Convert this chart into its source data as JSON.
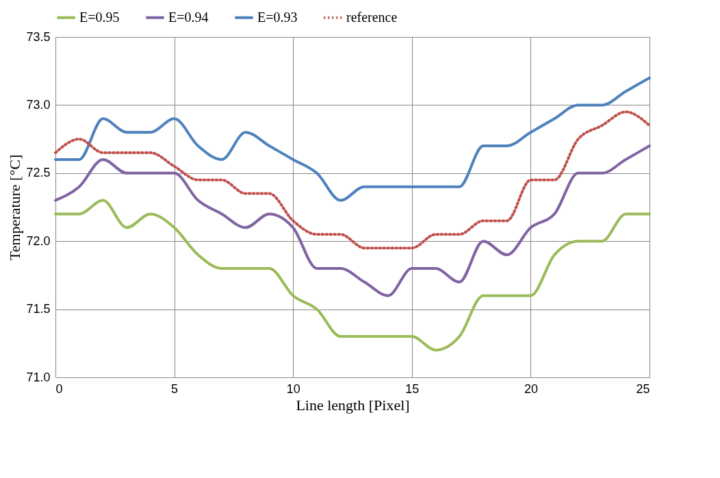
{
  "chart_data": {
    "type": "line",
    "xlabel": "Line length [Pixel]",
    "ylabel": "Temperature [°C]",
    "x": [
      0,
      1,
      2,
      3,
      4,
      5,
      6,
      7,
      8,
      9,
      10,
      11,
      12,
      13,
      14,
      15,
      16,
      17,
      18,
      19,
      20,
      21,
      22,
      23,
      24,
      25
    ],
    "series": [
      {
        "name": "E=0.95",
        "color": "#9bbb59",
        "line_style": "solid",
        "values": [
          72.2,
          72.2,
          72.3,
          72.1,
          72.2,
          72.1,
          71.9,
          71.8,
          71.8,
          71.8,
          71.6,
          71.5,
          71.3,
          71.3,
          71.3,
          71.3,
          71.2,
          71.3,
          71.6,
          71.6,
          71.6,
          71.9,
          72.0,
          72.0,
          72.2,
          72.2
        ]
      },
      {
        "name": "E=0.94",
        "color": "#8064a2",
        "line_style": "solid",
        "values": [
          72.3,
          72.4,
          72.6,
          72.5,
          72.5,
          72.5,
          72.3,
          72.2,
          72.1,
          72.2,
          72.1,
          71.8,
          71.8,
          71.7,
          71.6,
          71.8,
          71.8,
          71.7,
          72.0,
          71.9,
          72.1,
          72.2,
          72.5,
          72.5,
          72.6,
          72.7
        ]
      },
      {
        "name": "E=0.93",
        "color": "#4f81bd",
        "line_style": "solid",
        "values": [
          72.6,
          72.6,
          72.9,
          72.8,
          72.8,
          72.9,
          72.7,
          72.6,
          72.8,
          72.7,
          72.6,
          72.5,
          72.3,
          72.4,
          72.4,
          72.4,
          72.4,
          72.4,
          72.7,
          72.7,
          72.8,
          72.9,
          73.0,
          73.0,
          73.1,
          73.2
        ]
      },
      {
        "name": "reference",
        "color": "#c0504d",
        "line_style": "dotted",
        "values": [
          72.65,
          72.75,
          72.65,
          72.65,
          72.65,
          72.55,
          72.45,
          72.45,
          72.35,
          72.35,
          72.15,
          72.05,
          72.05,
          71.95,
          71.95,
          71.95,
          72.05,
          72.05,
          72.15,
          72.15,
          72.45,
          72.45,
          72.75,
          72.85,
          72.95,
          72.85
        ]
      }
    ],
    "xlim": [
      0,
      25
    ],
    "xticks": [
      0,
      5,
      10,
      15,
      20,
      25
    ],
    "ylim": [
      71.0,
      73.5
    ],
    "yticks": [
      {
        "value": 71.0,
        "label": "71.0"
      },
      {
        "value": 71.5,
        "label": "71.5"
      },
      {
        "value": 72.0,
        "label": "72.0"
      },
      {
        "value": 72.5,
        "label": "72.5"
      },
      {
        "value": 73.0,
        "label": "73.0"
      },
      {
        "value": 73.5,
        "label": "73.5"
      }
    ],
    "grid": true,
    "legend": "top",
    "marker": "none"
  }
}
